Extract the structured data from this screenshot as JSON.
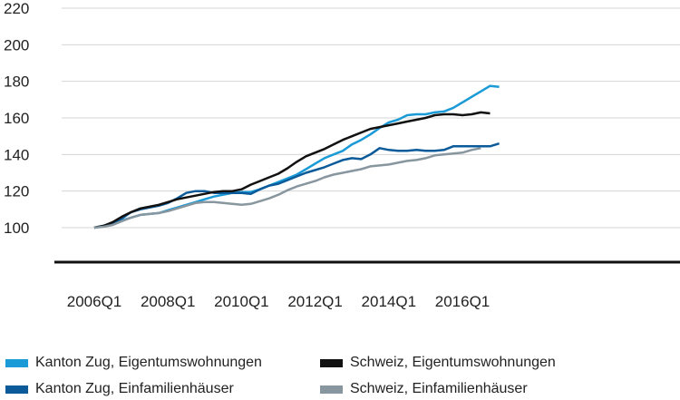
{
  "chart_data": {
    "type": "line",
    "ylim": [
      100,
      220
    ],
    "y_ticks": [
      "100",
      "120",
      "140",
      "160",
      "180",
      "200",
      "220"
    ],
    "x_ticks": [
      "2006Q1",
      "2008Q1",
      "2010Q1",
      "2012Q1",
      "2014Q1",
      "2016Q1"
    ],
    "grid": true,
    "legend_position": "bottom",
    "x_start": "2006Q1",
    "series": [
      {
        "name": "Kanton Zug, Eigentumswohnungen",
        "color": "#1a9ad6",
        "values": [
          100,
          101,
          102.5,
          104,
          105.5,
          107,
          107.5,
          108,
          109.5,
          111,
          112.5,
          114,
          115.5,
          117,
          118,
          119,
          119.5,
          119.5,
          121,
          123,
          125,
          127,
          129,
          132,
          135,
          138,
          140,
          142,
          145.5,
          148,
          151,
          154.5,
          157.5,
          159,
          161.5,
          162,
          162,
          163,
          163.5,
          165.5,
          168.5,
          171.5,
          174.5,
          177.5,
          177
        ]
      },
      {
        "name": "Kanton Zug, Einfamilienhäuser",
        "color": "#0b5b9a",
        "values": [
          100,
          101,
          102.5,
          105,
          108.5,
          110,
          111,
          112,
          113.5,
          116,
          119,
          120,
          120,
          119,
          119,
          119,
          119,
          118.5,
          121,
          123,
          124,
          126,
          128,
          130,
          131.5,
          133,
          135,
          137,
          138,
          137.5,
          140,
          143.5,
          142.5,
          142,
          142,
          142.5,
          142,
          142,
          142.5,
          144.5,
          144.5,
          144.5,
          144.5,
          144.5,
          146
        ]
      },
      {
        "name": "Schweiz, Eigentumswohnungen",
        "color": "#111111",
        "values": [
          100,
          101,
          103,
          106,
          108.5,
          110.5,
          111.5,
          112.5,
          114,
          115.5,
          116.5,
          117.5,
          118.5,
          119.5,
          120,
          120,
          121,
          123.5,
          125.5,
          127.5,
          129.5,
          132.5,
          136,
          139,
          141,
          143,
          145.5,
          148,
          150,
          152,
          154,
          155,
          156,
          157,
          158,
          159,
          160,
          161.5,
          162,
          162,
          161.5,
          162,
          163,
          162.5
        ]
      },
      {
        "name": "Schweiz, Einfamilienhäuser",
        "color": "#87969f",
        "values": [
          100,
          100.5,
          101.5,
          103.5,
          105.5,
          107,
          107.5,
          108,
          109,
          110.5,
          112,
          113.5,
          114,
          114,
          113.5,
          113,
          112.5,
          113,
          114.5,
          116,
          118,
          120.5,
          122.5,
          124,
          125.5,
          127.5,
          129,
          130,
          131,
          132,
          133.5,
          134,
          134.5,
          135.5,
          136.5,
          137,
          138,
          139.5,
          140,
          140.5,
          141,
          142.5,
          143.5
        ]
      }
    ]
  }
}
